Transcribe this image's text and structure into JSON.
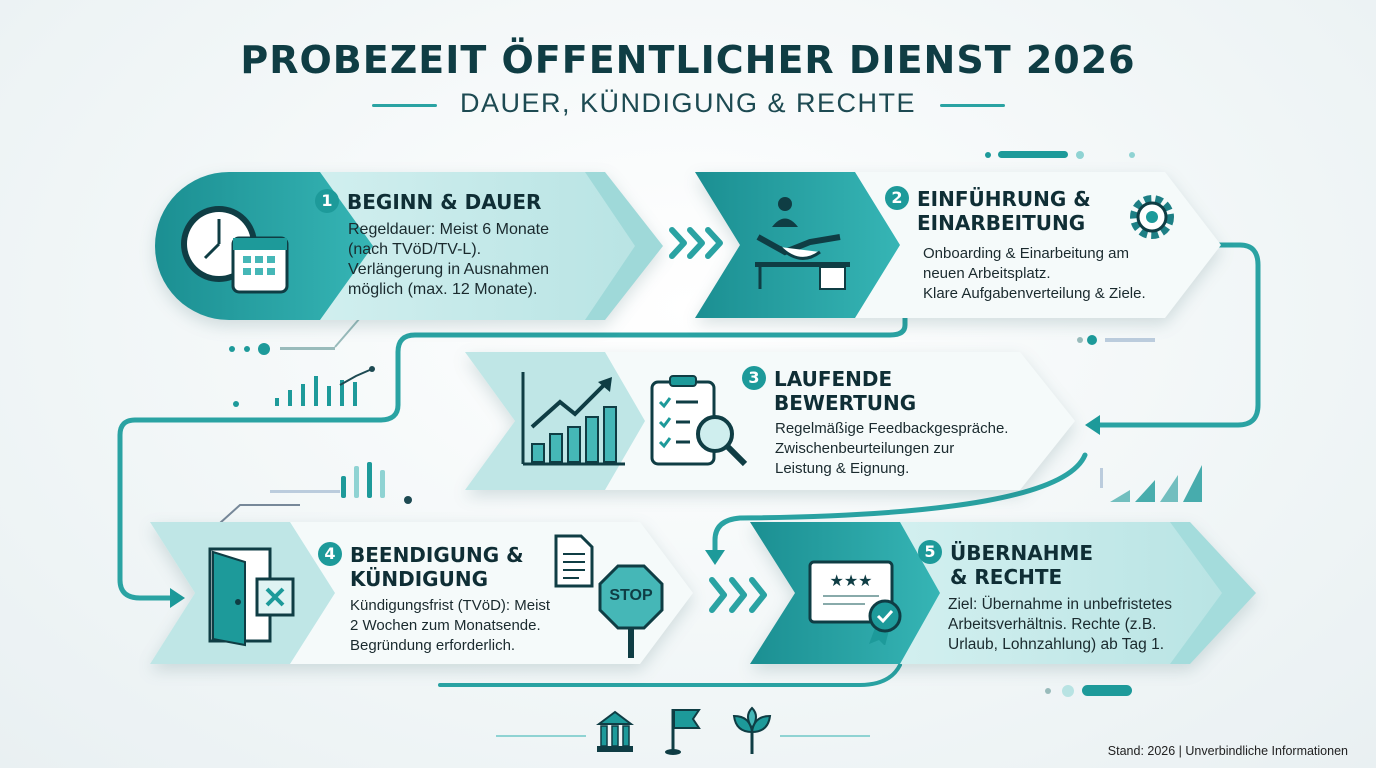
{
  "title": "PROBEZEIT ÖFFENTLICHER DIENST 2026",
  "subtitle": "DAUER, KÜNDIGUNG & RECHTE",
  "colors": {
    "accent": "#1d9a9a",
    "dark": "#0f3d44",
    "light": "#c9ecec"
  },
  "steps": [
    {
      "number": "1",
      "title": "BEGINN & DAUER",
      "body": [
        "Regeldauer: Meist 6 Monate",
        "(nach TVöD/TV-L).",
        "Verlängerung in Ausnahmen",
        "möglich (max. 12 Monate)."
      ],
      "icons": [
        "clock-icon",
        "calendar-icon"
      ]
    },
    {
      "number": "2",
      "title": [
        "EINFÜHRUNG &",
        "EINARBEITUNG"
      ],
      "body": [
        "Onboarding & Einarbeitung am",
        "neuen Arbeitsplatz.",
        "Klare Aufgabenverteilung & Ziele."
      ],
      "icons": [
        "handshake-icon",
        "gear-icon"
      ]
    },
    {
      "number": "3",
      "title": [
        "LAUFENDE",
        "BEWERTUNG"
      ],
      "body": [
        "Regelmäßige Feedbackgespräche.",
        "Zwischenbeurteilungen zur",
        "Leistung & Eignung."
      ],
      "icons": [
        "growth-chart-icon",
        "checklist-magnifier-icon"
      ]
    },
    {
      "number": "4",
      "title": [
        "BEENDIGUNG &",
        "KÜNDIGUNG"
      ],
      "body": [
        "Kündigungsfrist (TVöD): Meist",
        "2 Wochen zum Monatsende.",
        "Begründung erforderlich."
      ],
      "icons": [
        "door-exit-icon",
        "document-icon",
        "stop-sign-icon"
      ],
      "stop_label": "STOP"
    },
    {
      "number": "5",
      "title": [
        "ÜBERNAHME",
        "& RECHTE"
      ],
      "body": [
        "Ziel: Übernahme in unbefristetes",
        "Arbeitsverhältnis. Rechte (z.B.",
        "Urlaub, Lohnzahlung) ab Tag 1."
      ],
      "icons": [
        "certificate-icon"
      ]
    }
  ],
  "bottom_icons": [
    "government-building-icon",
    "flag-icon",
    "plant-icon"
  ],
  "footer": "Stand: 2026 | Unverbindliche Informationen"
}
